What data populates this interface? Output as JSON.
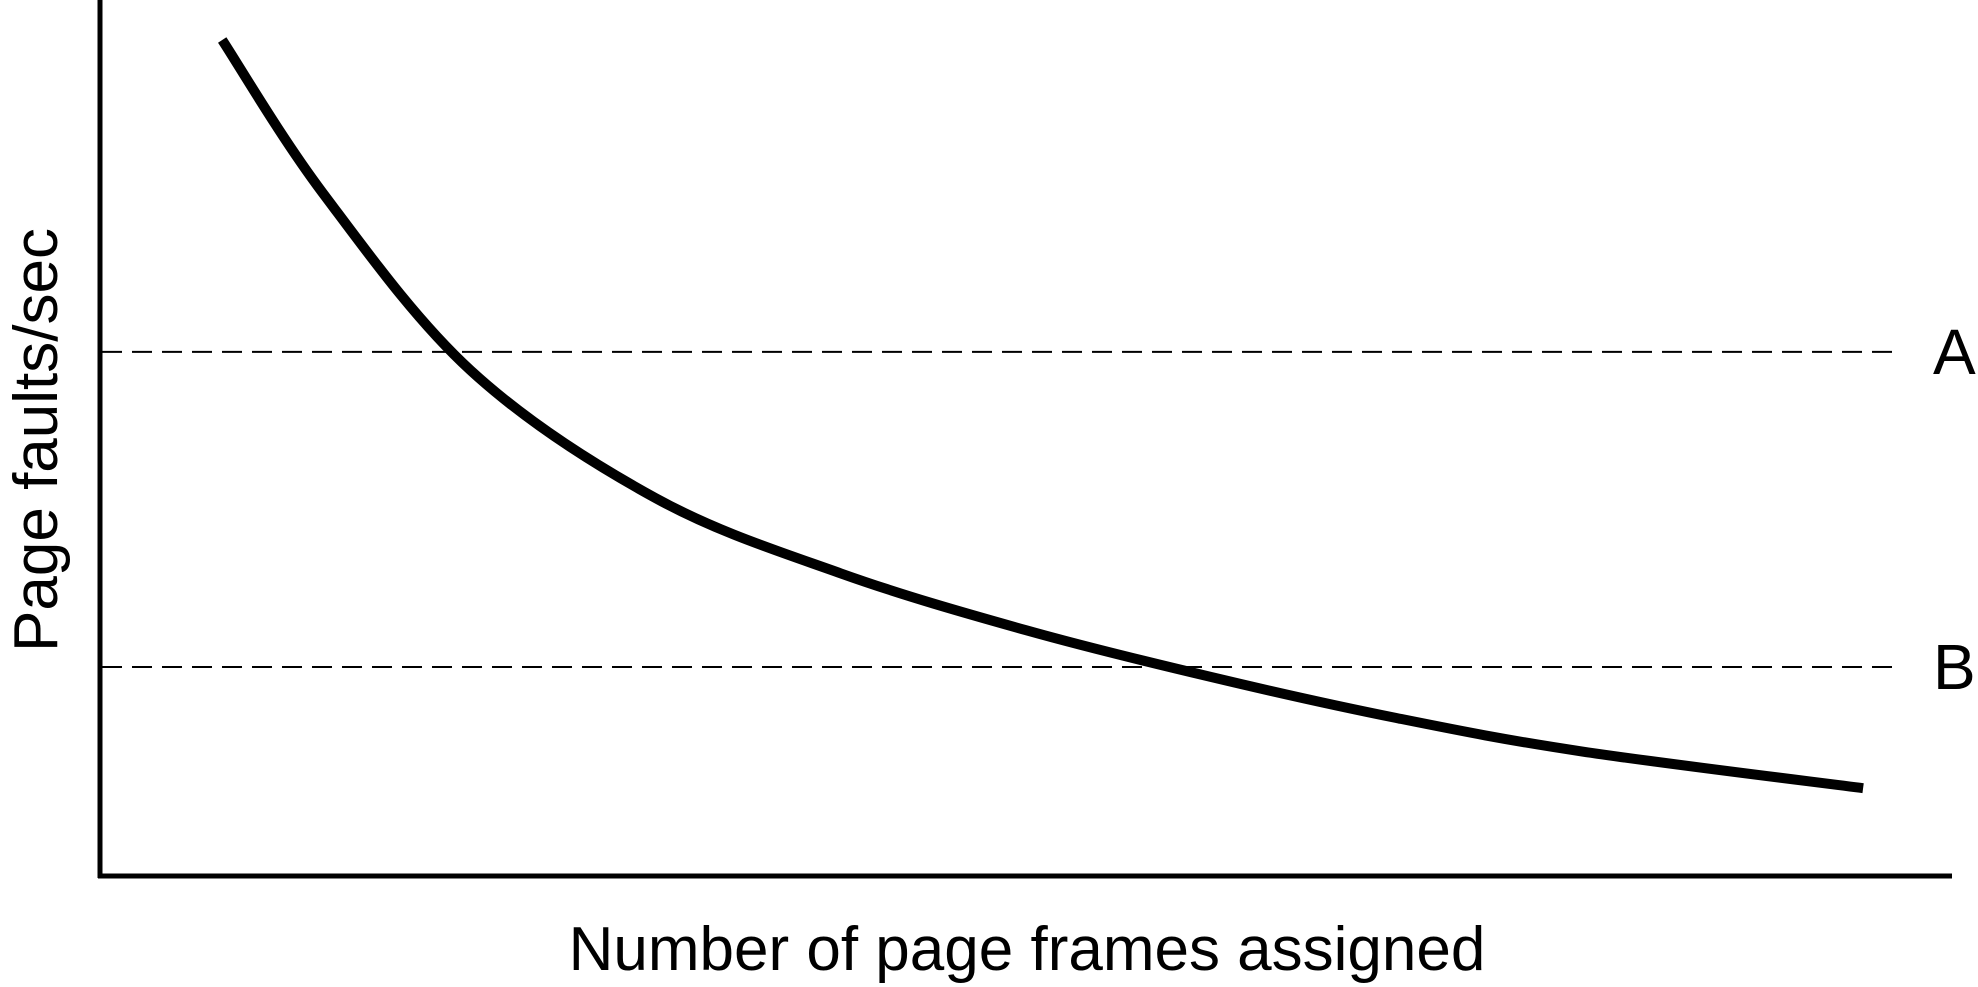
{
  "chart_data": {
    "type": "line",
    "xlabel": "Number of page frames assigned",
    "ylabel": "Page faults/sec",
    "xlim": [
      0,
      100
    ],
    "ylim": [
      0,
      100
    ],
    "grid": false,
    "series": [
      {
        "x": [
          6.6,
          12,
          20,
          30,
          40,
          50,
          60,
          70,
          80,
          95.2
        ],
        "y": [
          100,
          81.8,
          60.5,
          45.2,
          36.2,
          29.4,
          23.8,
          18.9,
          14.9,
          10.5
        ]
      }
    ],
    "reference_lines": [
      {
        "label": "A",
        "y": 62.7,
        "style": "dashed"
      },
      {
        "label": "B",
        "y": 25.0,
        "style": "dashed"
      }
    ],
    "colors": {
      "line": "#000000",
      "axis": "#000000"
    }
  }
}
